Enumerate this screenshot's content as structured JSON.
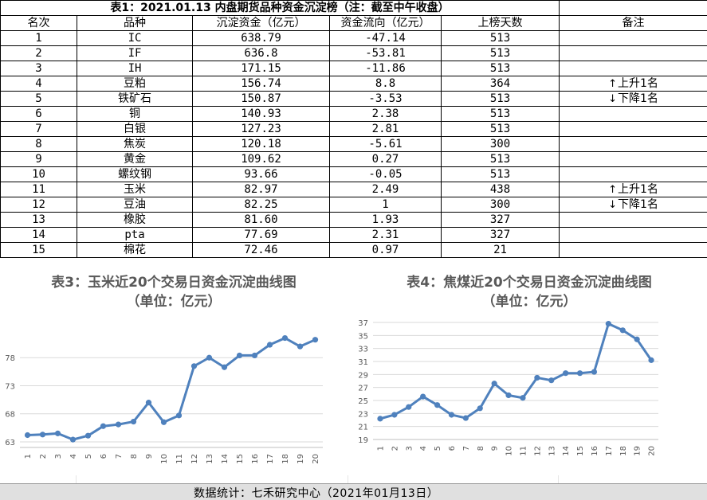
{
  "table": {
    "title": "表1：2021.01.13 内盘期货品种资金沉淀榜（注：截至中午收盘）",
    "headers": [
      "名次",
      "品种",
      "沉淀资金（亿元）",
      "资金流向（亿元）",
      "上榜天数",
      "备注"
    ],
    "rows": [
      {
        "rank": "1",
        "name": "IC",
        "fund": "638.79",
        "flow": "-47.14",
        "days": "513",
        "note": "",
        "note_arrow": ""
      },
      {
        "rank": "2",
        "name": "IF",
        "fund": "636.8",
        "flow": "-53.81",
        "days": "513",
        "note": "",
        "note_arrow": ""
      },
      {
        "rank": "3",
        "name": "IH",
        "fund": "171.15",
        "flow": "-11.86",
        "days": "513",
        "note": "",
        "note_arrow": ""
      },
      {
        "rank": "4",
        "name": "豆粕",
        "fund": "156.74",
        "flow": "8.8",
        "days": "364",
        "note": "上升1名",
        "note_arrow": "↑"
      },
      {
        "rank": "5",
        "name": "铁矿石",
        "fund": "150.87",
        "flow": "-3.53",
        "days": "513",
        "note": "下降1名",
        "note_arrow": "↓"
      },
      {
        "rank": "6",
        "name": "铜",
        "fund": "140.93",
        "flow": "2.38",
        "days": "513",
        "note": "",
        "note_arrow": ""
      },
      {
        "rank": "7",
        "name": "白银",
        "fund": "127.23",
        "flow": "2.81",
        "days": "513",
        "note": "",
        "note_arrow": ""
      },
      {
        "rank": "8",
        "name": "焦炭",
        "fund": "120.18",
        "flow": "-5.61",
        "days": "300",
        "note": "",
        "note_arrow": ""
      },
      {
        "rank": "9",
        "name": "黄金",
        "fund": "109.62",
        "flow": "0.27",
        "days": "513",
        "note": "",
        "note_arrow": ""
      },
      {
        "rank": "10",
        "name": "螺纹钢",
        "fund": "93.66",
        "flow": "-0.05",
        "days": "513",
        "note": "",
        "note_arrow": ""
      },
      {
        "rank": "11",
        "name": "玉米",
        "fund": "82.97",
        "flow": "2.49",
        "days": "438",
        "note": "上升1名",
        "note_arrow": "↑"
      },
      {
        "rank": "12",
        "name": "豆油",
        "fund": "82.25",
        "flow": "1",
        "days": "300",
        "note": "下降1名",
        "note_arrow": "↓"
      },
      {
        "rank": "13",
        "name": "橡胶",
        "fund": "81.60",
        "flow": "1.93",
        "days": "327",
        "note": "",
        "note_arrow": ""
      },
      {
        "rank": "14",
        "name": "pta",
        "fund": "77.69",
        "flow": "2.31",
        "days": "327",
        "note": "",
        "note_arrow": ""
      },
      {
        "rank": "15",
        "name": "棉花",
        "fund": "72.46",
        "flow": "0.97",
        "days": "21",
        "note": "",
        "note_arrow": ""
      }
    ]
  },
  "chart_data": [
    {
      "type": "line",
      "title": "表3：玉米近20个交易日资金沉淀曲线图",
      "subtitle": "（单位：亿元）",
      "categories": [
        "1",
        "2",
        "3",
        "4",
        "5",
        "6",
        "7",
        "8",
        "9",
        "10",
        "11",
        "12",
        "13",
        "14",
        "15",
        "16",
        "17",
        "18",
        "19",
        "20"
      ],
      "series": [
        {
          "values": [
            64.2,
            64.3,
            64.5,
            63.4,
            64.1,
            65.8,
            66.1,
            66.6,
            70.0,
            66.5,
            67.7,
            76.5,
            78.0,
            76.3,
            78.4,
            78.4,
            80.3,
            81.5,
            80.0,
            81.2
          ]
        }
      ],
      "yticks": [
        63,
        68,
        73,
        78
      ],
      "ylim": [
        62,
        83
      ],
      "grid": true,
      "color": "#4f81bd"
    },
    {
      "type": "line",
      "title": "表4：焦煤近20个交易日资金沉淀曲线图",
      "subtitle": "（单位：亿元）",
      "categories": [
        "1",
        "2",
        "3",
        "4",
        "5",
        "6",
        "7",
        "8",
        "9",
        "10",
        "11",
        "12",
        "13",
        "14",
        "15",
        "16",
        "17",
        "18",
        "19",
        "20"
      ],
      "series": [
        {
          "values": [
            22.2,
            22.8,
            24.0,
            25.6,
            24.3,
            22.8,
            22.3,
            23.8,
            27.6,
            25.8,
            25.4,
            28.5,
            28.1,
            29.2,
            29.2,
            29.4,
            36.8,
            35.8,
            34.4,
            31.2
          ]
        }
      ],
      "yticks": [
        19,
        21,
        23,
        25,
        27,
        29,
        31,
        33,
        35,
        37
      ],
      "ylim": [
        19,
        37
      ],
      "grid": true,
      "color": "#4f81bd"
    }
  ],
  "footer": {
    "text": "数据统计：七禾研究中心（2021年01月13日）"
  }
}
